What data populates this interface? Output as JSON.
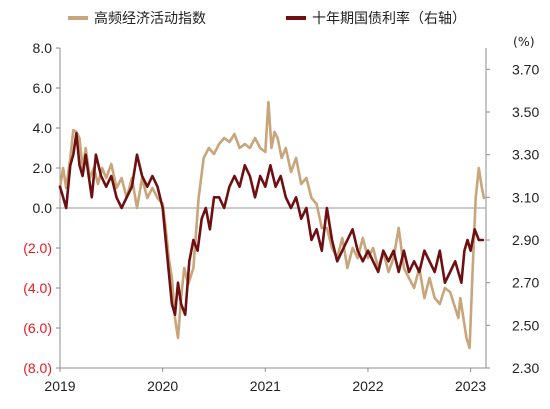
{
  "chart_data": {
    "type": "line",
    "legend": {
      "placement": "top",
      "items": [
        {
          "label": "高频经济活动指数",
          "color": "#c8a57a"
        },
        {
          "label": "十年期国债利率（右轴）",
          "color": "#6e0f11"
        }
      ]
    },
    "x_ticks": [
      "2019",
      "2020",
      "2021",
      "2022",
      "2023"
    ],
    "x_range": [
      2019.0,
      2023.15
    ],
    "left_axis": {
      "range": [
        -8,
        8
      ],
      "ticks": [
        {
          "value": 8,
          "label": "8.0"
        },
        {
          "value": 6,
          "label": "6.0"
        },
        {
          "value": 4,
          "label": "4.0"
        },
        {
          "value": 2,
          "label": "2.0"
        },
        {
          "value": 0,
          "label": "0.0"
        },
        {
          "value": -2,
          "label": "(2.0)",
          "color": "#e8191f"
        },
        {
          "value": -4,
          "label": "(4.0)",
          "color": "#e8191f"
        },
        {
          "value": -6,
          "label": "(6.0)",
          "color": "#e8191f"
        },
        {
          "value": -8,
          "label": "(8.0)",
          "color": "#e8191f"
        }
      ]
    },
    "right_axis": {
      "unit": "(%)",
      "range": [
        2.3,
        3.8
      ],
      "ticks": [
        {
          "value": 3.7,
          "label": "3.70"
        },
        {
          "value": 3.5,
          "label": "3.50"
        },
        {
          "value": 3.3,
          "label": "3.30"
        },
        {
          "value": 3.1,
          "label": "3.10"
        },
        {
          "value": 2.9,
          "label": "2.90"
        },
        {
          "value": 2.7,
          "label": "2.70"
        },
        {
          "value": 2.5,
          "label": "2.50"
        },
        {
          "value": 2.3,
          "label": "2.30"
        }
      ]
    },
    "grid": false,
    "zero_line": true,
    "series": [
      {
        "name": "高频经济活动指数",
        "axis": "left",
        "color": "#c8a57a",
        "x": [
          2019.0,
          2019.03,
          2019.06,
          2019.1,
          2019.13,
          2019.16,
          2019.19,
          2019.22,
          2019.25,
          2019.29,
          2019.33,
          2019.37,
          2019.41,
          2019.45,
          2019.5,
          2019.55,
          2019.6,
          2019.65,
          2019.7,
          2019.75,
          2019.8,
          2019.85,
          2019.9,
          2019.95,
          2020.0,
          2020.03,
          2020.06,
          2020.09,
          2020.12,
          2020.15,
          2020.18,
          2020.21,
          2020.25,
          2020.3,
          2020.35,
          2020.4,
          2020.45,
          2020.5,
          2020.55,
          2020.6,
          2020.65,
          2020.7,
          2020.75,
          2020.8,
          2020.85,
          2020.9,
          2020.95,
          2021.0,
          2021.03,
          2021.06,
          2021.09,
          2021.12,
          2021.16,
          2021.2,
          2021.25,
          2021.3,
          2021.35,
          2021.4,
          2021.45,
          2021.5,
          2021.55,
          2021.6,
          2021.65,
          2021.7,
          2021.75,
          2021.8,
          2021.85,
          2021.9,
          2021.95,
          2022.0,
          2022.05,
          2022.1,
          2022.15,
          2022.2,
          2022.25,
          2022.3,
          2022.35,
          2022.4,
          2022.45,
          2022.5,
          2022.55,
          2022.6,
          2022.65,
          2022.7,
          2022.75,
          2022.8,
          2022.85,
          2022.88,
          2022.9,
          2022.93,
          2022.96,
          2022.99,
          2023.02,
          2023.05,
          2023.08,
          2023.11,
          2023.13
        ],
        "values": [
          1.0,
          2.0,
          1.0,
          2.5,
          3.9,
          3.8,
          3.5,
          2.0,
          3.0,
          1.5,
          2.0,
          1.2,
          2.0,
          1.5,
          2.2,
          1.0,
          1.5,
          0.5,
          1.5,
          0.0,
          1.5,
          0.5,
          1.0,
          0.5,
          0.2,
          -1.0,
          -2.5,
          -3.5,
          -5.5,
          -6.5,
          -4.5,
          -3.0,
          -3.8,
          -3.0,
          0.5,
          2.5,
          3.0,
          2.7,
          3.2,
          3.5,
          3.3,
          3.7,
          3.0,
          3.2,
          3.0,
          3.5,
          3.0,
          2.8,
          5.3,
          3.0,
          3.8,
          3.5,
          2.5,
          3.0,
          1.8,
          2.5,
          1.2,
          1.5,
          0.5,
          0.2,
          -1.0,
          -1.0,
          -2.0,
          -2.5,
          -1.5,
          -3.0,
          -2.0,
          -2.5,
          -1.5,
          -2.5,
          -2.0,
          -3.0,
          -2.2,
          -3.2,
          -2.5,
          -1.0,
          -3.0,
          -3.5,
          -4.0,
          -3.0,
          -4.5,
          -3.5,
          -4.5,
          -4.8,
          -4.0,
          -4.2,
          -5.0,
          -5.5,
          -4.5,
          -5.5,
          -6.5,
          -7.0,
          -3.0,
          0.5,
          2.0,
          1.0,
          0.5
        ]
      },
      {
        "name": "十年期国债利率（右轴）",
        "axis": "right",
        "color": "#6e0f11",
        "x": [
          2019.0,
          2019.03,
          2019.06,
          2019.1,
          2019.13,
          2019.16,
          2019.19,
          2019.22,
          2019.25,
          2019.28,
          2019.31,
          2019.35,
          2019.4,
          2019.45,
          2019.5,
          2019.55,
          2019.6,
          2019.65,
          2019.7,
          2019.75,
          2019.8,
          2019.85,
          2019.9,
          2019.95,
          2020.0,
          2020.03,
          2020.06,
          2020.09,
          2020.12,
          2020.15,
          2020.18,
          2020.22,
          2020.26,
          2020.3,
          2020.34,
          2020.38,
          2020.42,
          2020.46,
          2020.5,
          2020.55,
          2020.6,
          2020.65,
          2020.7,
          2020.75,
          2020.8,
          2020.85,
          2020.9,
          2020.95,
          2021.0,
          2021.05,
          2021.1,
          2021.15,
          2021.2,
          2021.25,
          2021.3,
          2021.35,
          2021.4,
          2021.45,
          2021.5,
          2021.55,
          2021.6,
          2021.65,
          2021.7,
          2021.75,
          2021.8,
          2021.85,
          2021.9,
          2021.95,
          2022.0,
          2022.05,
          2022.1,
          2022.15,
          2022.2,
          2022.25,
          2022.3,
          2022.35,
          2022.4,
          2022.45,
          2022.5,
          2022.55,
          2022.6,
          2022.65,
          2022.7,
          2022.75,
          2022.8,
          2022.85,
          2022.88,
          2022.91,
          2022.94,
          2022.97,
          2023.0,
          2023.04,
          2023.08,
          2023.12
        ],
        "values": [
          3.15,
          3.1,
          3.05,
          3.25,
          3.3,
          3.4,
          3.25,
          3.2,
          3.3,
          3.2,
          3.1,
          3.3,
          3.2,
          3.15,
          3.2,
          3.1,
          3.05,
          3.1,
          3.15,
          3.3,
          3.2,
          3.15,
          3.2,
          3.15,
          3.05,
          2.9,
          2.75,
          2.6,
          2.55,
          2.7,
          2.6,
          2.55,
          2.8,
          2.9,
          2.85,
          3.0,
          3.05,
          2.95,
          3.1,
          3.1,
          3.05,
          3.15,
          3.2,
          3.15,
          3.25,
          3.2,
          3.1,
          3.2,
          3.15,
          3.25,
          3.15,
          3.2,
          3.1,
          3.05,
          3.1,
          3.0,
          3.05,
          2.9,
          2.95,
          2.85,
          3.05,
          2.9,
          2.8,
          2.85,
          2.9,
          2.95,
          2.85,
          2.8,
          2.85,
          2.8,
          2.75,
          2.85,
          2.8,
          2.85,
          2.75,
          2.85,
          2.75,
          2.8,
          2.75,
          2.85,
          2.8,
          2.75,
          2.85,
          2.7,
          2.75,
          2.8,
          2.75,
          2.7,
          2.85,
          2.9,
          2.85,
          2.95,
          2.9,
          2.9
        ]
      }
    ]
  }
}
